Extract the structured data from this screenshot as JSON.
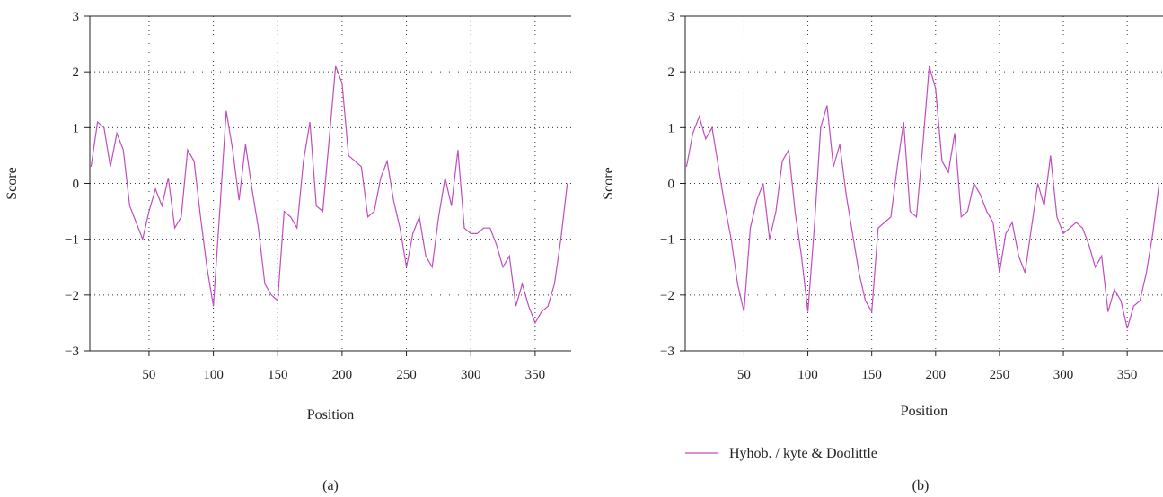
{
  "chart_data": [
    {
      "type": "line",
      "caption": "(a)",
      "xlabel": "Position",
      "ylabel": "Score",
      "xlim": [
        4,
        378
      ],
      "ylim": [
        -3,
        3
      ],
      "xticks": [
        50,
        100,
        150,
        200,
        250,
        300,
        350
      ],
      "yticks": [
        -3,
        -2,
        -1,
        0,
        1,
        2,
        3
      ],
      "ytick_labels": [
        "−3",
        "−2",
        "−1",
        "0",
        "1",
        "2",
        "3"
      ],
      "grid": true,
      "series": [
        {
          "color": "#c04cc0",
          "x": [
            5,
            10,
            15,
            20,
            25,
            30,
            35,
            40,
            45,
            50,
            55,
            60,
            65,
            70,
            75,
            80,
            85,
            90,
            95,
            100,
            105,
            110,
            115,
            120,
            125,
            130,
            135,
            140,
            145,
            150,
            155,
            160,
            165,
            170,
            175,
            180,
            185,
            190,
            195,
            200,
            205,
            210,
            215,
            220,
            225,
            230,
            235,
            240,
            245,
            250,
            255,
            260,
            265,
            270,
            275,
            280,
            285,
            290,
            295,
            300,
            305,
            310,
            315,
            320,
            325,
            330,
            335,
            340,
            345,
            350,
            355,
            360,
            365,
            370,
            375
          ],
          "y": [
            0.3,
            1.1,
            1.0,
            0.3,
            0.9,
            0.6,
            -0.4,
            -0.7,
            -1.0,
            -0.5,
            -0.1,
            -0.4,
            0.1,
            -0.8,
            -0.6,
            0.6,
            0.4,
            -0.6,
            -1.5,
            -2.2,
            -0.5,
            1.3,
            0.6,
            -0.3,
            0.7,
            -0.1,
            -0.8,
            -1.8,
            -2.0,
            -2.1,
            -0.5,
            -0.6,
            -0.8,
            0.4,
            1.1,
            -0.4,
            -0.5,
            0.8,
            2.1,
            1.8,
            0.5,
            0.4,
            0.3,
            -0.6,
            -0.5,
            0.1,
            0.4,
            -0.3,
            -0.8,
            -1.5,
            -0.9,
            -0.6,
            -1.3,
            -1.5,
            -0.6,
            0.1,
            -0.4,
            0.6,
            -0.8,
            -0.9,
            -0.9,
            -0.8,
            -0.8,
            -1.1,
            -1.5,
            -1.3,
            -2.2,
            -1.8,
            -2.2,
            -2.5,
            -2.3,
            -2.2,
            -1.8,
            -1.0,
            0.0
          ]
        }
      ]
    },
    {
      "type": "line",
      "caption": "(b)",
      "xlabel": "Position",
      "ylabel": "Score",
      "xlim": [
        4,
        378
      ],
      "ylim": [
        -3,
        3
      ],
      "xticks": [
        50,
        100,
        150,
        200,
        250,
        300,
        350
      ],
      "yticks": [
        -3,
        -2,
        -1,
        0,
        1,
        2,
        3
      ],
      "ytick_labels": [
        "−3",
        "−2",
        "−1",
        "0",
        "1",
        "2",
        "3"
      ],
      "grid": true,
      "legend": {
        "position": "below",
        "entries": [
          "Hyhob. / kyte & Doolittle"
        ]
      },
      "series": [
        {
          "name": "Hyhob. / kyte & Doolittle",
          "color": "#c04cc0",
          "x": [
            5,
            10,
            15,
            20,
            25,
            30,
            35,
            40,
            45,
            50,
            55,
            60,
            65,
            70,
            75,
            80,
            85,
            90,
            95,
            100,
            105,
            110,
            115,
            120,
            125,
            130,
            135,
            140,
            145,
            150,
            155,
            160,
            165,
            170,
            175,
            180,
            185,
            190,
            195,
            200,
            205,
            210,
            215,
            220,
            225,
            230,
            235,
            240,
            245,
            250,
            255,
            260,
            265,
            270,
            275,
            280,
            285,
            290,
            295,
            300,
            305,
            310,
            315,
            320,
            325,
            330,
            335,
            340,
            345,
            350,
            355,
            360,
            365,
            370,
            375
          ],
          "y": [
            0.3,
            0.9,
            1.2,
            0.8,
            1.0,
            0.3,
            -0.4,
            -1.0,
            -1.8,
            -2.3,
            -0.8,
            -0.3,
            0.0,
            -1.0,
            -0.5,
            0.4,
            0.6,
            -0.5,
            -1.3,
            -2.3,
            -0.8,
            1.0,
            1.4,
            0.3,
            0.7,
            -0.2,
            -0.9,
            -1.6,
            -2.1,
            -2.3,
            -0.8,
            -0.7,
            -0.6,
            0.3,
            1.1,
            -0.5,
            -0.6,
            0.7,
            2.1,
            1.7,
            0.4,
            0.2,
            0.9,
            -0.6,
            -0.5,
            0.0,
            -0.2,
            -0.5,
            -0.7,
            -1.6,
            -0.9,
            -0.7,
            -1.3,
            -1.6,
            -0.8,
            0.0,
            -0.4,
            0.5,
            -0.6,
            -0.9,
            -0.8,
            -0.7,
            -0.8,
            -1.1,
            -1.5,
            -1.3,
            -2.3,
            -1.9,
            -2.1,
            -2.6,
            -2.2,
            -2.1,
            -1.6,
            -0.9,
            0.0
          ]
        }
      ]
    }
  ]
}
